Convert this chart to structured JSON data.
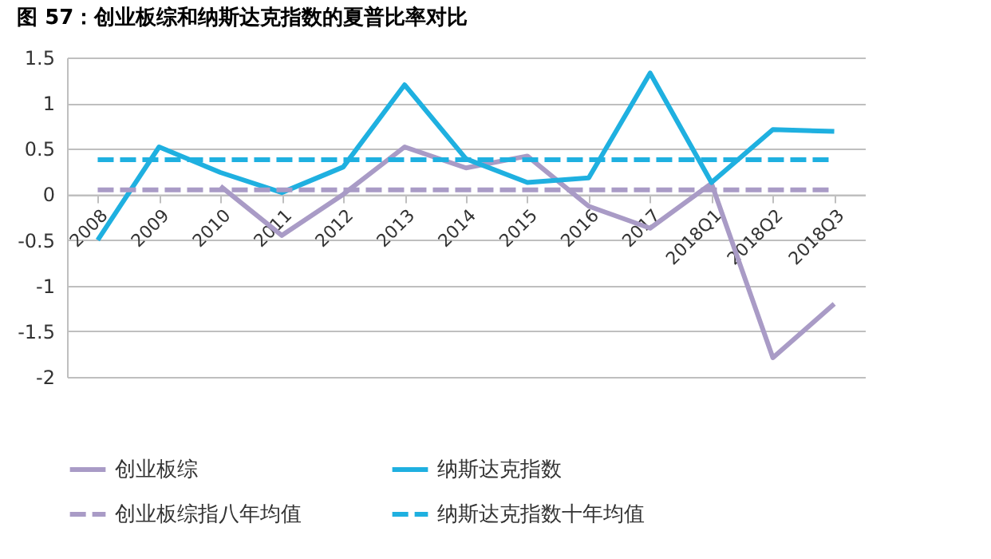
{
  "chart_data": {
    "type": "line",
    "title": "图 57：创业板综和纳斯达克指数的夏普比率对比",
    "categories": [
      "2008",
      "2009",
      "2010",
      "2011",
      "2012",
      "2013",
      "2014",
      "2015",
      "2016",
      "2017",
      "2018Q1",
      "2018Q2",
      "2018Q3"
    ],
    "series": [
      {
        "name": "创业板综",
        "color": "#a99bc6",
        "line_style": "solid",
        "values": [
          null,
          null,
          0.09,
          -0.45,
          0.0,
          0.52,
          0.29,
          0.42,
          -0.13,
          -0.37,
          0.12,
          -1.79,
          -1.2
        ]
      },
      {
        "name": "纳斯达克指数",
        "color": "#1fb0e0",
        "line_style": "solid",
        "values": [
          -0.5,
          0.52,
          0.24,
          0.02,
          0.3,
          1.2,
          0.39,
          0.13,
          0.18,
          1.33,
          0.13,
          0.71,
          0.69
        ]
      },
      {
        "name": "创业板综指八年均值",
        "color": "#a99bc6",
        "line_style": "dashed",
        "values": [
          0.05,
          0.05,
          0.05,
          0.05,
          0.05,
          0.05,
          0.05,
          0.05,
          0.05,
          0.05,
          0.05,
          0.05,
          0.05
        ]
      },
      {
        "name": "纳斯达克指数十年均值",
        "color": "#1fb0e0",
        "line_style": "dashed",
        "values": [
          0.38,
          0.38,
          0.38,
          0.38,
          0.38,
          0.38,
          0.38,
          0.38,
          0.38,
          0.38,
          0.38,
          0.38,
          0.38
        ]
      }
    ],
    "ylim": [
      -2,
      1.5
    ],
    "yticks": [
      -2,
      -1.5,
      -1,
      -0.5,
      0,
      0.5,
      1,
      1.5
    ],
    "grid": "y",
    "legend": "bottom"
  }
}
